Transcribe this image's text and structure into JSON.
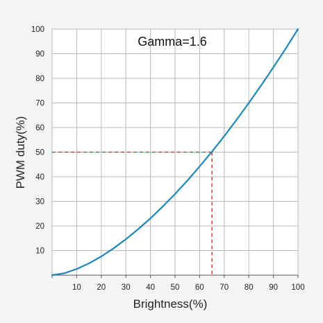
{
  "chart_data": {
    "type": "line",
    "title": "",
    "annotation": "Gamma=1.6",
    "xlabel": "Brightness(%)",
    "ylabel": "PWM duty(%)",
    "xlim": [
      0,
      100
    ],
    "ylim": [
      0,
      100
    ],
    "x_ticks": [
      10,
      20,
      30,
      40,
      50,
      60,
      70,
      80,
      90,
      100
    ],
    "y_ticks": [
      10,
      20,
      30,
      40,
      50,
      60,
      70,
      80,
      90,
      100
    ],
    "grid": true,
    "series": [
      {
        "x": [
          0,
          5,
          10,
          15,
          20,
          25,
          30,
          35,
          40,
          45,
          50,
          55,
          60,
          65,
          70,
          75,
          80,
          85,
          90,
          95,
          100
        ],
        "values": [
          0,
          0.8,
          2.5,
          4.8,
          7.6,
          10.9,
          14.6,
          18.7,
          23.1,
          27.9,
          33.0,
          38.4,
          44.2,
          50.2,
          56.5,
          63.1,
          70.0,
          77.1,
          84.5,
          92.1,
          100.0
        ],
        "color": "#1b87b8"
      }
    ],
    "reference": {
      "x": 65,
      "y": 50,
      "color": "#cc2222",
      "style": "dashed"
    }
  }
}
